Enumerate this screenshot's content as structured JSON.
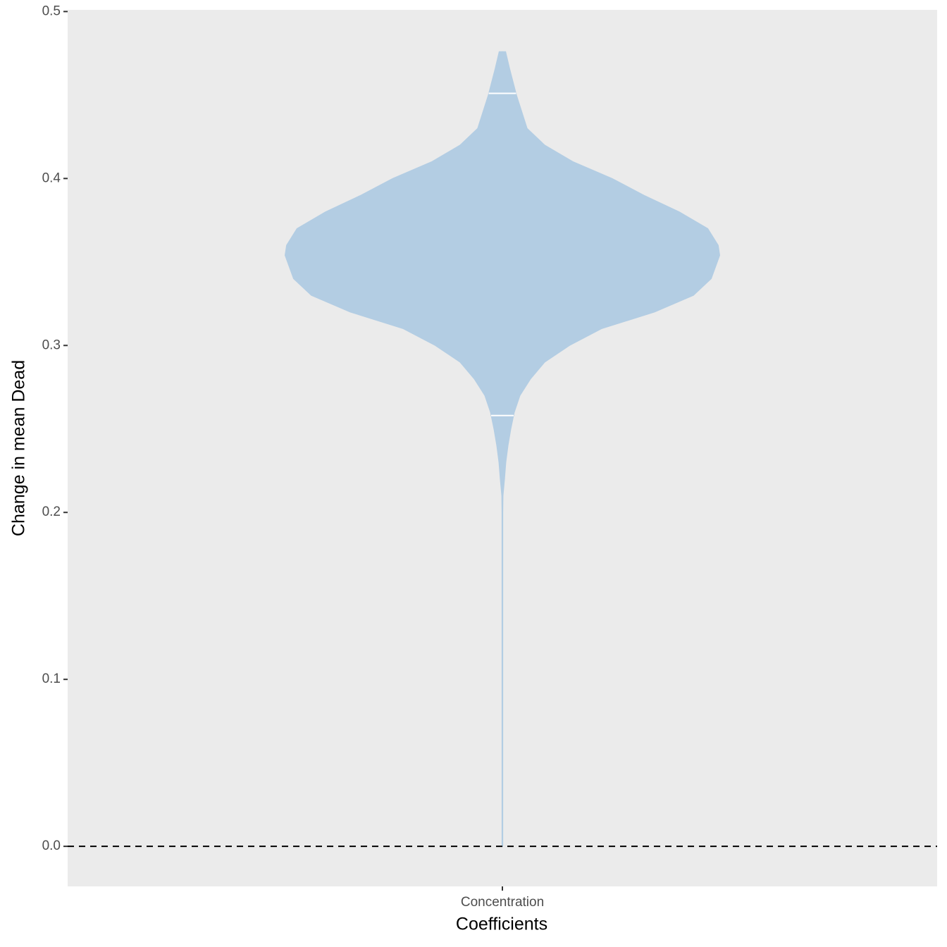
{
  "chart_data": {
    "type": "violin",
    "categories": [
      "Concentration"
    ],
    "xlabel": "Coefficients",
    "ylabel": "Change in mean Dead",
    "ylim": [
      -0.024,
      0.501
    ],
    "yticks": [
      {
        "value": 0,
        "label": "0.0"
      },
      0.1,
      0.2,
      0.3,
      0.4,
      0.5
    ],
    "violin": {
      "y": [
        0,
        0.05,
        0.1,
        0.15,
        0.2,
        0.21,
        0.22,
        0.23,
        0.24,
        0.25,
        0.26,
        0.27,
        0.28,
        0.29,
        0.3,
        0.31,
        0.32,
        0.33,
        0.34,
        0.354,
        0.36,
        0.37,
        0.38,
        0.39,
        0.4,
        0.41,
        0.42,
        0.43,
        0.45,
        0.465,
        0.476
      ],
      "density": [
        0.002,
        0.002,
        0.002,
        0.002,
        0.002,
        0.003,
        0.01,
        0.016,
        0.026,
        0.039,
        0.055,
        0.081,
        0.13,
        0.195,
        0.309,
        0.456,
        0.7,
        0.879,
        0.961,
        1,
        0.993,
        0.945,
        0.814,
        0.651,
        0.505,
        0.326,
        0.195,
        0.114,
        0.065,
        0.035,
        0.015
      ]
    },
    "quantiles": [
      0.258,
      0.451
    ],
    "hline": 0,
    "color": "#b3cde3",
    "quantile_color": "#ffffff",
    "hline_color": "#000000",
    "background": "#ebebeb"
  }
}
